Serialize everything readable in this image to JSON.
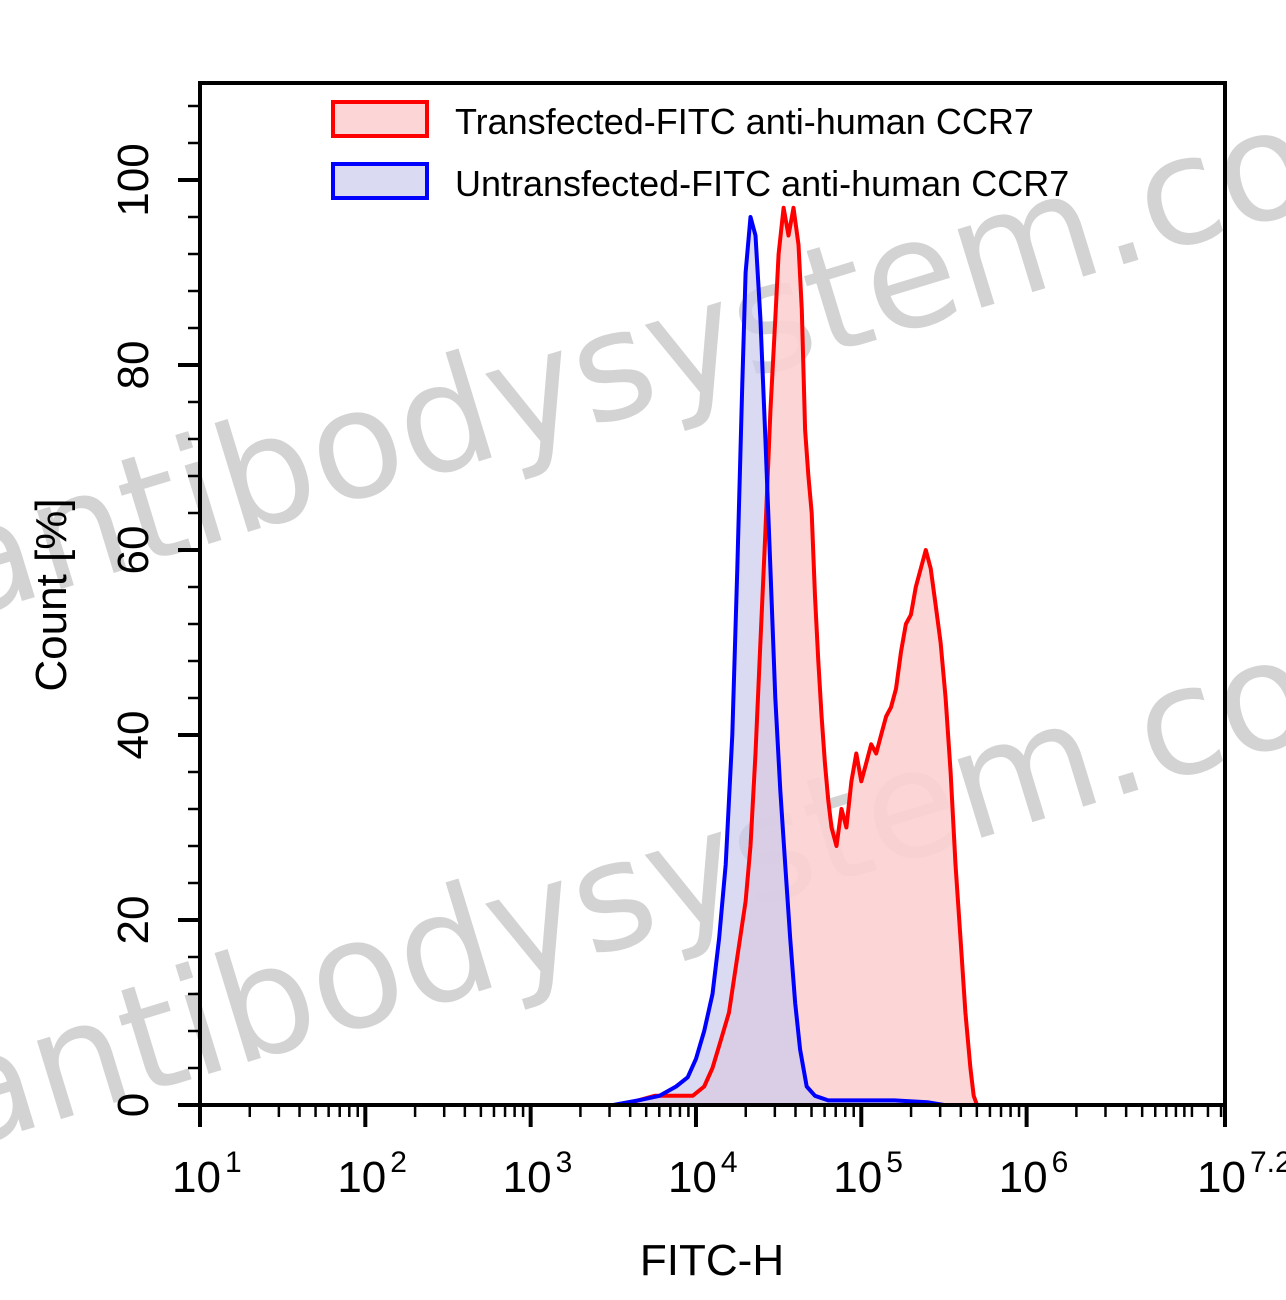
{
  "chart_data": {
    "type": "area",
    "title": "",
    "xlabel": "FITC-H",
    "ylabel": "Count [%]",
    "x_scale": "log10",
    "xlim": [
      1,
      7.2
    ],
    "ylim": [
      0,
      110
    ],
    "x_ticks": [
      {
        "log": 1,
        "base": "10",
        "exp": "1"
      },
      {
        "log": 2,
        "base": "10",
        "exp": "2"
      },
      {
        "log": 3,
        "base": "10",
        "exp": "3"
      },
      {
        "log": 4,
        "base": "10",
        "exp": "4"
      },
      {
        "log": 5,
        "base": "10",
        "exp": "5"
      },
      {
        "log": 6,
        "base": "10",
        "exp": "6"
      },
      {
        "log": 7.2,
        "base": "10",
        "exp": "7.2"
      }
    ],
    "y_ticks": [
      0,
      20,
      40,
      60,
      80,
      100
    ],
    "legend_position": "top-right",
    "watermark": "antibodysystem.com",
    "series": [
      {
        "name": "Transfected-FITC anti-human CCR7",
        "color": "#ff0000",
        "fill": "#fcd2d2",
        "points": [
          [
            3.0,
            0
          ],
          [
            3.3,
            0
          ],
          [
            3.55,
            0
          ],
          [
            3.75,
            1
          ],
          [
            3.9,
            1
          ],
          [
            3.98,
            1
          ],
          [
            4.05,
            2
          ],
          [
            4.1,
            4
          ],
          [
            4.15,
            7
          ],
          [
            4.2,
            10
          ],
          [
            4.25,
            16
          ],
          [
            4.3,
            22
          ],
          [
            4.33,
            28
          ],
          [
            4.36,
            38
          ],
          [
            4.39,
            50
          ],
          [
            4.42,
            62
          ],
          [
            4.45,
            75
          ],
          [
            4.48,
            85
          ],
          [
            4.5,
            92
          ],
          [
            4.53,
            97
          ],
          [
            4.56,
            94
          ],
          [
            4.59,
            97
          ],
          [
            4.62,
            93
          ],
          [
            4.64,
            86
          ],
          [
            4.66,
            73
          ],
          [
            4.68,
            68
          ],
          [
            4.7,
            64
          ],
          [
            4.72,
            55
          ],
          [
            4.74,
            48
          ],
          [
            4.76,
            42
          ],
          [
            4.78,
            37
          ],
          [
            4.8,
            33
          ],
          [
            4.82,
            30
          ],
          [
            4.85,
            28
          ],
          [
            4.88,
            32
          ],
          [
            4.91,
            30
          ],
          [
            4.94,
            35
          ],
          [
            4.97,
            38
          ],
          [
            5.0,
            35
          ],
          [
            5.03,
            37
          ],
          [
            5.06,
            39
          ],
          [
            5.09,
            38
          ],
          [
            5.12,
            40
          ],
          [
            5.15,
            42
          ],
          [
            5.18,
            43
          ],
          [
            5.21,
            45
          ],
          [
            5.24,
            49
          ],
          [
            5.27,
            52
          ],
          [
            5.3,
            53
          ],
          [
            5.33,
            56
          ],
          [
            5.36,
            58
          ],
          [
            5.39,
            60
          ],
          [
            5.42,
            58
          ],
          [
            5.45,
            54
          ],
          [
            5.48,
            50
          ],
          [
            5.51,
            44
          ],
          [
            5.54,
            36
          ],
          [
            5.57,
            26
          ],
          [
            5.6,
            18
          ],
          [
            5.63,
            10
          ],
          [
            5.66,
            4
          ],
          [
            5.68,
            1
          ],
          [
            5.7,
            0
          ]
        ]
      },
      {
        "name": "Untransfected-FITC anti-human CCR7",
        "color": "#0000ff",
        "fill": "#cccbee",
        "points": [
          [
            3.0,
            0
          ],
          [
            3.3,
            0
          ],
          [
            3.5,
            0
          ],
          [
            3.65,
            0.5
          ],
          [
            3.78,
            1
          ],
          [
            3.88,
            2
          ],
          [
            3.95,
            3
          ],
          [
            4.0,
            5
          ],
          [
            4.05,
            8
          ],
          [
            4.1,
            12
          ],
          [
            4.14,
            18
          ],
          [
            4.18,
            26
          ],
          [
            4.22,
            40
          ],
          [
            4.25,
            58
          ],
          [
            4.28,
            78
          ],
          [
            4.3,
            90
          ],
          [
            4.33,
            96
          ],
          [
            4.36,
            94
          ],
          [
            4.39,
            85
          ],
          [
            4.42,
            72
          ],
          [
            4.45,
            58
          ],
          [
            4.48,
            44
          ],
          [
            4.51,
            34
          ],
          [
            4.54,
            26
          ],
          [
            4.57,
            18
          ],
          [
            4.6,
            11
          ],
          [
            4.63,
            6
          ],
          [
            4.67,
            2
          ],
          [
            4.72,
            1
          ],
          [
            4.8,
            0.5
          ],
          [
            4.9,
            0.5
          ],
          [
            5.0,
            0.5
          ],
          [
            5.2,
            0.5
          ],
          [
            5.4,
            0.3
          ],
          [
            5.5,
            0
          ],
          [
            5.7,
            0
          ]
        ]
      }
    ]
  }
}
